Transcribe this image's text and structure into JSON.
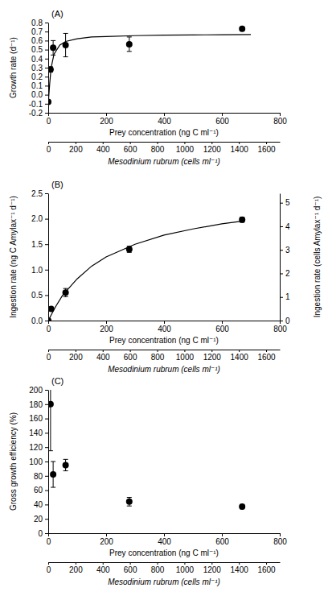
{
  "chart_data": [
    {
      "type": "scatter",
      "title": "(A)",
      "x_label": "Prey concentration (ng C ml⁻¹)",
      "x2_label": "Mesodinium rubrum (cells ml⁻¹)",
      "y_label": "Growth rate (d⁻¹)",
      "xlim": [
        0,
        800
      ],
      "xticks": [
        0,
        200,
        400,
        600,
        800
      ],
      "x2lim": [
        0,
        1700
      ],
      "x2ticks": [
        0,
        200,
        400,
        600,
        800,
        1000,
        1200,
        1400,
        1600
      ],
      "ylim": [
        -0.2,
        0.8
      ],
      "yticks": [
        -0.2,
        -0.1,
        {
          "value": 0,
          "label": "0.0"
        },
        0.1,
        0.2,
        0.3,
        0.4,
        0.5,
        0.6,
        0.7,
        0.8
      ],
      "series": [
        {
          "type": "scatter",
          "color": "#000000",
          "marker": "circle",
          "x": [
            0,
            8,
            17,
            60,
            280,
            670
          ],
          "values": [
            -0.08,
            0.28,
            0.52,
            0.55,
            0.56,
            0.73
          ],
          "errors": [
            0.02,
            0.03,
            0.08,
            0.13,
            0.08,
            0.02
          ]
        },
        {
          "type": "line",
          "color": "#000000",
          "line_style": "solid",
          "x": [
            0,
            5,
            10,
            20,
            40,
            60,
            100,
            150,
            200,
            300,
            400,
            500,
            600,
            700
          ],
          "values": [
            -0.1,
            0.12,
            0.3,
            0.45,
            0.55,
            0.59,
            0.62,
            0.64,
            0.645,
            0.655,
            0.66,
            0.663,
            0.665,
            0.667
          ]
        }
      ]
    },
    {
      "type": "scatter",
      "title": "(B)",
      "x_label": "Prey concentration (ng C ml⁻¹)",
      "x2_label": "Mesodinium rubrum (cells ml⁻¹)",
      "y_label": "Ingestion rate (ng C Amylax⁻¹ d⁻¹)",
      "y2_label": "Ingestion rate (cells Amylax⁻¹ d⁻¹)",
      "xlim": [
        0,
        800
      ],
      "xticks": [
        0,
        200,
        400,
        600,
        800
      ],
      "x2lim": [
        0,
        1700
      ],
      "x2ticks": [
        0,
        200,
        400,
        600,
        800,
        1000,
        1200,
        1400,
        1600
      ],
      "ylim": [
        0,
        2.5
      ],
      "yticks": [
        {
          "value": 0,
          "label": "0.0"
        },
        0.5,
        {
          "value": 1,
          "label": "1.0"
        },
        1.5,
        {
          "value": 2,
          "label": "2.0"
        },
        2.5
      ],
      "y2lim": [
        0,
        5.4
      ],
      "y2ticks": [
        0,
        1,
        2,
        3,
        4,
        5
      ],
      "series": [
        {
          "type": "scatter",
          "color": "#000000",
          "marker": "circle",
          "x": [
            0,
            10,
            60,
            280,
            670
          ],
          "values": [
            0,
            0.23,
            0.55,
            1.4,
            1.98
          ],
          "errors": [
            0,
            0.02,
            0.08,
            0.06,
            0.05
          ]
        },
        {
          "type": "line",
          "color": "#000000",
          "line_style": "solid",
          "x": [
            0,
            25,
            50,
            100,
            150,
            200,
            300,
            400,
            500,
            600,
            680
          ],
          "values": [
            0,
            0.27,
            0.5,
            0.82,
            1.07,
            1.25,
            1.5,
            1.68,
            1.8,
            1.9,
            1.96
          ]
        }
      ]
    },
    {
      "type": "scatter",
      "title": "(C)",
      "x_label": "Prey concentration (ng C ml⁻¹)",
      "x2_label": "Mesodinium rubrum (cells ml⁻¹)",
      "y_label": "Gross growth efficiency (%)",
      "xlim": [
        0,
        800
      ],
      "xticks": [
        0,
        200,
        400,
        600,
        800
      ],
      "x2lim": [
        0,
        1700
      ],
      "x2ticks": [
        0,
        200,
        400,
        600,
        800,
        1000,
        1200,
        1400,
        1600
      ],
      "ylim": [
        0,
        200
      ],
      "yticks": [
        0,
        20,
        40,
        60,
        80,
        100,
        120,
        140,
        160,
        180,
        200
      ],
      "series": [
        {
          "type": "scatter",
          "color": "#000000",
          "marker": "circle",
          "x": [
            8,
            17,
            60,
            280,
            670
          ],
          "values": [
            180,
            82,
            95,
            44,
            37
          ],
          "errors": [
            65,
            18,
            8,
            6,
            3
          ]
        }
      ]
    }
  ]
}
